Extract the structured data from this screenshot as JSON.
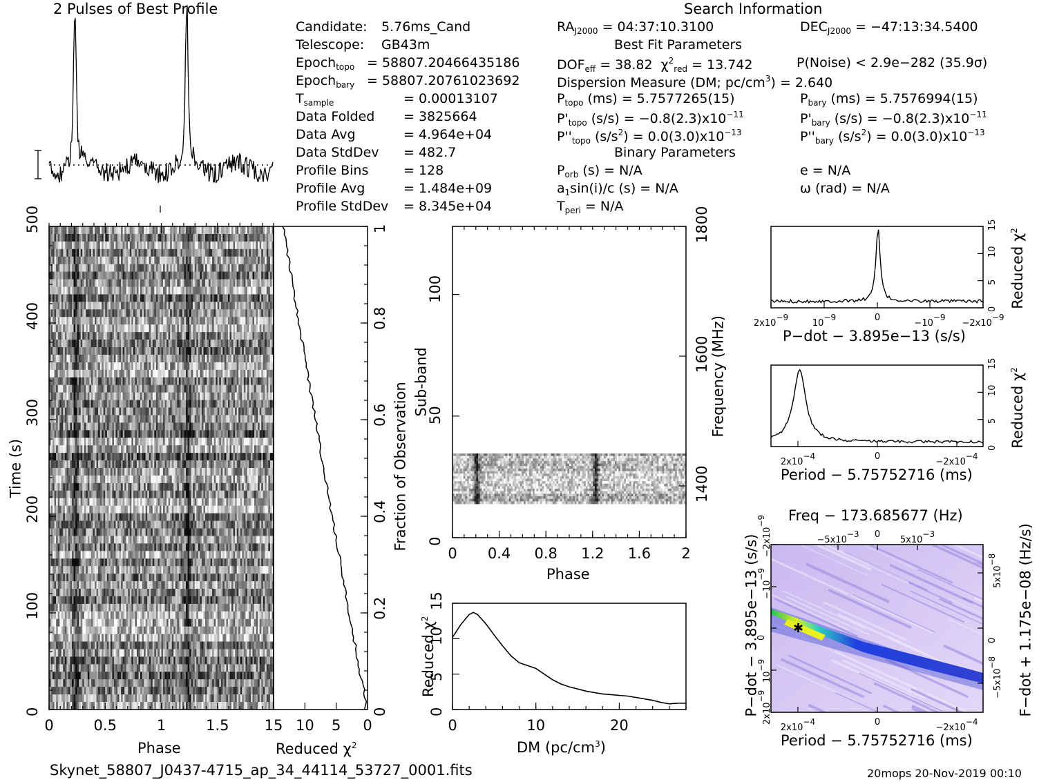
{
  "header": {
    "profile_title": "2 Pulses of Best Profile",
    "search_title": "Search Information"
  },
  "candidate_info": [
    {
      "label": "Candidate:",
      "value": "5.76ms_Cand"
    },
    {
      "label": "Telescope:",
      "value": "GB43m"
    },
    {
      "label": "Epoch",
      "sub": "topo",
      "value": "= 58807.20466435186"
    },
    {
      "label": "Epoch",
      "sub": "bary",
      "value": "= 58807.20761023692"
    },
    {
      "label": "T",
      "sub": "sample",
      "value": "=   0.00013107"
    },
    {
      "label": "Data Folded",
      "value": "=   3825664"
    },
    {
      "label": "Data Avg",
      "value": "=   4.964e+04"
    },
    {
      "label": "Data StdDev",
      "value": "=   482.7"
    },
    {
      "label": "Profile Bins",
      "value": "=   128"
    },
    {
      "label": "Profile Avg",
      "value": "=   1.484e+09"
    },
    {
      "label": "Profile StdDev",
      "value": "=   8.345e+04"
    }
  ],
  "search_info": {
    "ra": "RA",
    "ra_sub": "J2000",
    "ra_value": "= 04:37:10.3100",
    "dec": "DEC",
    "dec_sub": "J2000",
    "dec_value": "= −47:13:34.5400",
    "best_fit_title": "Best Fit Parameters",
    "dof": "DOF",
    "dof_sub": "eff",
    "dof_value": "= 38.82",
    "chi": "χ",
    "chi_sup": "2",
    "chi_sub": "red",
    "chi_value": "= 13.742",
    "pnoise": "P(Noise) < 2.9e−282  (35.9σ)",
    "dm_line": "Dispersion Measure (DM; pc/cm",
    "dm_sup": "3",
    "dm_value": ") = 2.640",
    "ptopo": "P",
    "ptopo_sub": "topo",
    "ptopo_value": " (ms) =  5.7577265(15)",
    "pbary": "P",
    "pbary_sub": "bary",
    "pbary_value": " (ms) =  5.7576994(15)",
    "pdtopo": "P'",
    "pdtopo_sub": "topo",
    "pdtopo_value": " (s/s) = −0.8(2.3)x10",
    "pdtopo_exp": "−11",
    "pdbary": "P'",
    "pdbary_sub": "bary",
    "pdbary_value": " (s/s) = −0.8(2.3)x10",
    "pdbary_exp": "−11",
    "pddtopo": "P''",
    "pddtopo_sub": "topo",
    "pddtopo_value": " (s/s",
    "pddtopo_sup": "2",
    "pddtopo_value2": ") = 0.0(3.0)x10",
    "pddtopo_exp": "−13",
    "pddbary": "P''",
    "pddbary_sub": "bary",
    "pddbary_value": " (s/s",
    "pddbary_sup": "2",
    "pddbary_value2": ") = 0.0(3.0)x10",
    "pddbary_exp": "−13",
    "binary_title": "Binary Parameters",
    "porb": "P",
    "porb_sub": "orb",
    "porb_value": " (s) = N/A",
    "ecc": "e = N/A",
    "asini": "a",
    "asini_sub": "1",
    "asini_value": "sin(i)/c (s) = N/A",
    "omega": "ω (rad) = N/A",
    "tperi": "T",
    "tperi_sub": "peri",
    "tperi_value": " = N/A"
  },
  "footer": {
    "filename": "Skynet_58807_J0437-4715_ap_34_44114_53727_0001.fits",
    "stamp": "20mops 20-Nov-2019 00:10"
  },
  "chart_data": [
    {
      "type": "line",
      "name": "profile",
      "description_visible": "2 Pulses of Best Profile",
      "x": "phase 0-2",
      "peaks_at_phase": [
        0.23,
        1.23
      ],
      "baseline": "dotted"
    },
    {
      "type": "heatmap",
      "name": "time-phase",
      "xlabel": "Phase",
      "ylabel": "Time (s)",
      "xticks": [
        "0",
        "0.5",
        "1",
        "1.5"
      ],
      "yticks": [
        "0",
        "100",
        "200",
        "300",
        "400",
        "500"
      ],
      "xlim": [
        0,
        2
      ],
      "ylim": [
        0,
        500
      ]
    },
    {
      "type": "line",
      "name": "reduced-chi2-vs-time",
      "xlabel": "Reduced χ",
      "xlabel_sup": "2",
      "ylabel": "Fraction of Observation",
      "xticks": [
        "15",
        "10",
        "5",
        "0"
      ],
      "yticks": [
        "0",
        "0.2",
        "0.4",
        "0.6",
        "0.8",
        "1"
      ],
      "xlim": [
        15,
        0
      ],
      "ylim": [
        0,
        1
      ]
    },
    {
      "type": "heatmap",
      "name": "subband-phase",
      "xlabel": "Phase",
      "ylabel": "Sub-band",
      "y2label": "Frequency (MHz)",
      "xticks": [
        "0",
        "0.4",
        "0.8",
        "1.2",
        "1.6",
        "2"
      ],
      "yticks": [
        "0",
        "50",
        "100"
      ],
      "y2ticks": [
        "1400",
        "1600",
        "1800"
      ],
      "xlim": [
        0,
        2
      ],
      "ylim": [
        0,
        128
      ]
    },
    {
      "type": "line",
      "name": "dm-chi2",
      "xlabel": "DM (pc/cm",
      "xlabel_sup": "3",
      "xlabel_end": ")",
      "ylabel": "Reduced χ",
      "ylabel_sup": "2",
      "xticks": [
        "0",
        "10",
        "20"
      ],
      "yticks": [
        "0",
        "5",
        "10",
        "15"
      ],
      "xlim": [
        0,
        28
      ],
      "ylim": [
        0,
        15
      ],
      "x": [
        0,
        1,
        2,
        2.5,
        3,
        4,
        5,
        6,
        7,
        8,
        9,
        10,
        11,
        12,
        13,
        14,
        15,
        16,
        17,
        18,
        19,
        20,
        21,
        22,
        23,
        24,
        25,
        26,
        27,
        28
      ],
      "y": [
        10.2,
        12.0,
        13.4,
        13.7,
        13.4,
        12.1,
        10.5,
        9.0,
        7.6,
        6.6,
        6.2,
        5.8,
        5.0,
        4.2,
        3.6,
        3.2,
        2.9,
        2.6,
        2.4,
        2.2,
        2.1,
        2.0,
        1.9,
        1.7,
        1.5,
        1.3,
        1.0,
        0.8,
        0.9,
        0.9
      ]
    },
    {
      "type": "line",
      "name": "pdot-chi2",
      "xlabel": "P−dot − 3.895e−13 (s/s)",
      "ylabel": "Reduced χ",
      "ylabel_sup": "2",
      "xticks": [
        "2x10",
        "10",
        "0",
        "−10",
        "−2x10"
      ],
      "xticks_exp": [
        "−9",
        "−9",
        "",
        "−9",
        "−9"
      ],
      "yticks": [
        "0",
        "5",
        "10",
        "15"
      ],
      "ylim": [
        0,
        15
      ],
      "peak_value": 14.0
    },
    {
      "type": "line",
      "name": "period-chi2",
      "xlabel": "Period − 5.75752716 (ms)",
      "ylabel": "Reduced χ",
      "ylabel_sup": "2",
      "xticks": [
        "2x10",
        "0",
        "−2x10"
      ],
      "xticks_exp": [
        "−4",
        "",
        "−4"
      ],
      "yticks": [
        "0",
        "5",
        "10",
        "15"
      ],
      "ylim": [
        0,
        15
      ],
      "peak_value": 14.0
    },
    {
      "type": "heatmap",
      "name": "period-pdot",
      "title": "Freq − 173.685677 (Hz)",
      "xlabel": "Period − 5.75752716 (ms)",
      "ylabel": "P−dot − 3.895e−13 (s/s)",
      "y2label": "F−dot + 1.175e−08 (Hz/s)",
      "xticks": [
        "2x10",
        "0",
        "−2x10"
      ],
      "xticks_exp": [
        "−4",
        "",
        "−4"
      ],
      "topticks": [
        "−5x10",
        "0",
        "5x10"
      ],
      "topticks_exp": [
        "−3",
        "",
        "−3"
      ],
      "yticks": [
        "2x10",
        "10",
        "0",
        "−10",
        "−2x10"
      ],
      "yticks_exp": [
        "−9",
        "−9",
        "",
        "−9",
        "−9"
      ],
      "y2ticks": [
        "−5x10",
        "0",
        "5x10"
      ],
      "y2ticks_exp": [
        "−8",
        "",
        "−8"
      ]
    }
  ]
}
